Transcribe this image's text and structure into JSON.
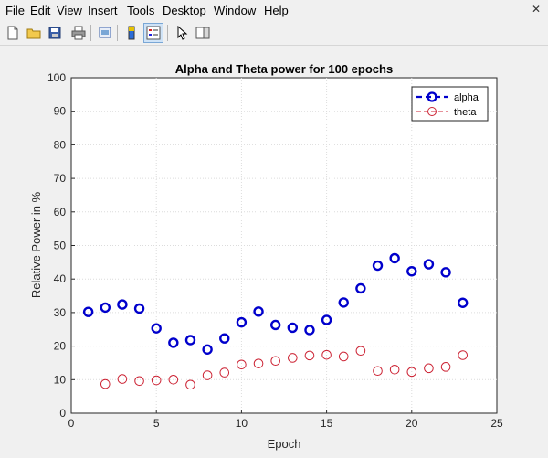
{
  "menu": [
    "File",
    "Edit",
    "View",
    "Insert",
    "Tools",
    "Desktop",
    "Window",
    "Help"
  ],
  "window_close": "✕",
  "toolbar": {
    "icons": [
      "new-file-icon",
      "open-folder-icon",
      "save-icon",
      "print-icon",
      "print-preview-icon",
      "colorbar-icon",
      "legend-icon",
      "select-arrow-icon",
      "property-editor-icon"
    ]
  },
  "chart_data": {
    "type": "scatter",
    "title": "Alpha and Theta power for 100 epochs",
    "xlabel": "Epoch",
    "ylabel": "Relative Power in %",
    "xlim": [
      0,
      25
    ],
    "ylim": [
      0,
      100
    ],
    "xticks": [
      0,
      5,
      10,
      15,
      20,
      25
    ],
    "yticks": [
      0,
      10,
      20,
      30,
      40,
      50,
      60,
      70,
      80,
      90,
      100
    ],
    "grid": true,
    "legend_position": "top-right",
    "series": [
      {
        "name": "alpha",
        "color": "#0000cc",
        "marker": "circle",
        "line_style": "dashed",
        "x": [
          1,
          2,
          3,
          4,
          5,
          6,
          7,
          8,
          9,
          10,
          11,
          12,
          13,
          14,
          15,
          16,
          17,
          18,
          19,
          20,
          21,
          22,
          23
        ],
        "y": [
          30.2,
          31.5,
          32.4,
          31.2,
          25.3,
          21.0,
          21.8,
          19.0,
          22.3,
          27.1,
          30.3,
          26.3,
          25.5,
          24.8,
          27.8,
          33.0,
          37.2,
          44.0,
          46.2,
          42.3,
          44.4,
          42.0,
          32.9
        ]
      },
      {
        "name": "theta",
        "color": "#cc2233",
        "marker": "circle",
        "line_style": "dashed",
        "x": [
          2,
          3,
          4,
          5,
          6,
          7,
          8,
          9,
          10,
          11,
          12,
          13,
          14,
          15,
          16,
          17,
          18,
          19,
          20,
          21,
          22,
          23
        ],
        "y": [
          8.7,
          10.2,
          9.6,
          9.8,
          10.0,
          8.5,
          11.3,
          12.1,
          14.5,
          14.8,
          15.6,
          16.5,
          17.2,
          17.4,
          16.9,
          18.6,
          12.6,
          13.0,
          12.3,
          13.4,
          13.8,
          17.3
        ]
      }
    ]
  }
}
